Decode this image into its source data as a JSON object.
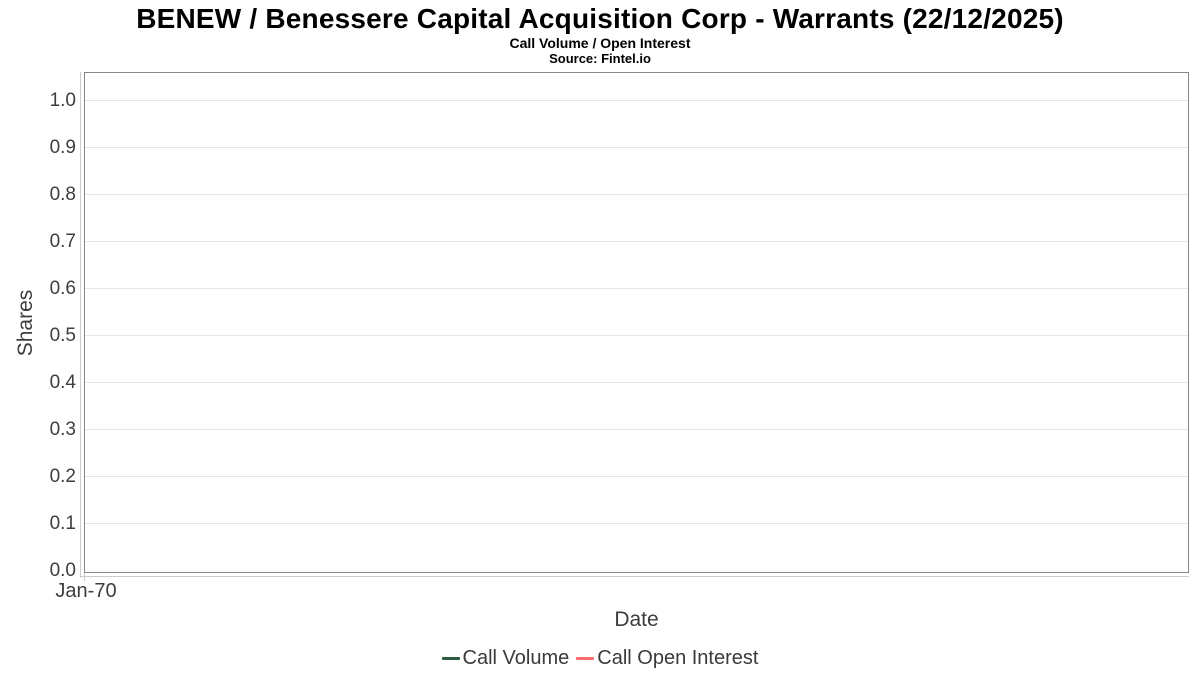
{
  "display": {
    "title": "BENEW / Benessere Capital Acquisition Corp - Warrants (22/12/2025)",
    "subtitle": "Call Volume / Open Interest",
    "source": "Source: Fintel.io",
    "xlabel": "Date",
    "ylabel": "Shares",
    "x_ticks": [
      "Jan-70"
    ],
    "y_ticks": [
      "1.0",
      "0.9",
      "0.8",
      "0.7",
      "0.6",
      "0.5",
      "0.4",
      "0.3",
      "0.2",
      "0.1",
      "0.0"
    ],
    "legend": [
      {
        "label": "Call Volume",
        "color": "#2e5c41"
      },
      {
        "label": "Call Open Interest",
        "color": "#fa6b6b"
      }
    ]
  },
  "colors": {
    "plot_border": "#868686",
    "axis_line": "#cccccc",
    "gridline": "#e6e6e6",
    "tick_text": "#3e3e3e",
    "title_text": "#000000",
    "call_volume": "#2e5c41",
    "call_open_interest": "#fa6b6b"
  },
  "chart_data": {
    "type": "line",
    "title": "BENEW / Benessere Capital Acquisition Corp - Warrants (22/12/2025)",
    "subtitle": "Call Volume / Open Interest",
    "source": "Source: Fintel.io",
    "xlabel": "Date",
    "ylabel": "Shares",
    "x_tick_labels": [
      "Jan-70"
    ],
    "y_tick_labels": [
      1.0,
      0.9,
      0.8,
      0.7,
      0.6,
      0.5,
      0.4,
      0.3,
      0.2,
      0.1,
      0.0
    ],
    "ylim": [
      0.0,
      1.06
    ],
    "grid": true,
    "legend_position": "bottom",
    "series": [
      {
        "name": "Call Volume",
        "color": "#2e5c41",
        "x": [],
        "values": []
      },
      {
        "name": "Call Open Interest",
        "color": "#fa6b6b",
        "x": [],
        "values": []
      }
    ]
  }
}
